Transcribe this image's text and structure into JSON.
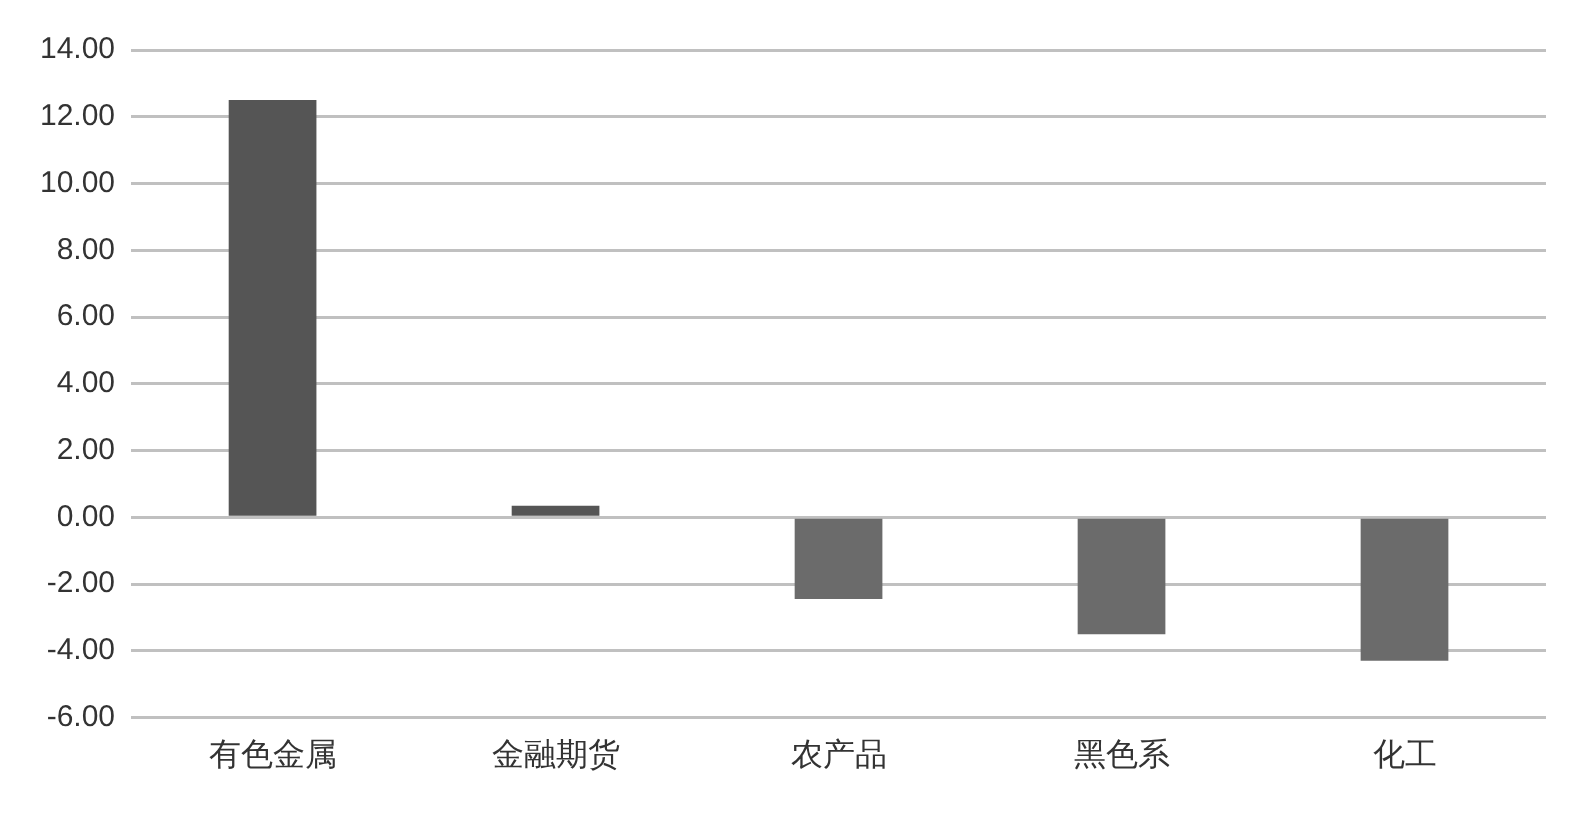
{
  "chart_data": {
    "type": "bar",
    "categories": [
      "有色金属",
      "金融期货",
      "农产品",
      "黑色系",
      "化工"
    ],
    "values": [
      12.5,
      0.35,
      -2.45,
      -3.5,
      -4.3
    ],
    "colors": [
      "#555555",
      "#555555",
      "#6b6b6b",
      "#6b6b6b",
      "#6b6b6b"
    ],
    "ylim": [
      -6,
      14
    ],
    "yticks": [
      {
        "value": -6,
        "label": "-6.00"
      },
      {
        "value": -4,
        "label": "-4.00"
      },
      {
        "value": -2,
        "label": "-2.00"
      },
      {
        "value": 0,
        "label": "0.00"
      },
      {
        "value": 2,
        "label": "2.00"
      },
      {
        "value": 4,
        "label": "4.00"
      },
      {
        "value": 6,
        "label": "6.00"
      },
      {
        "value": 8,
        "label": "8.00"
      },
      {
        "value": 10,
        "label": "10.00"
      },
      {
        "value": 12,
        "label": "12.00"
      },
      {
        "value": 14,
        "label": "14.00"
      }
    ],
    "grid": "y"
  }
}
